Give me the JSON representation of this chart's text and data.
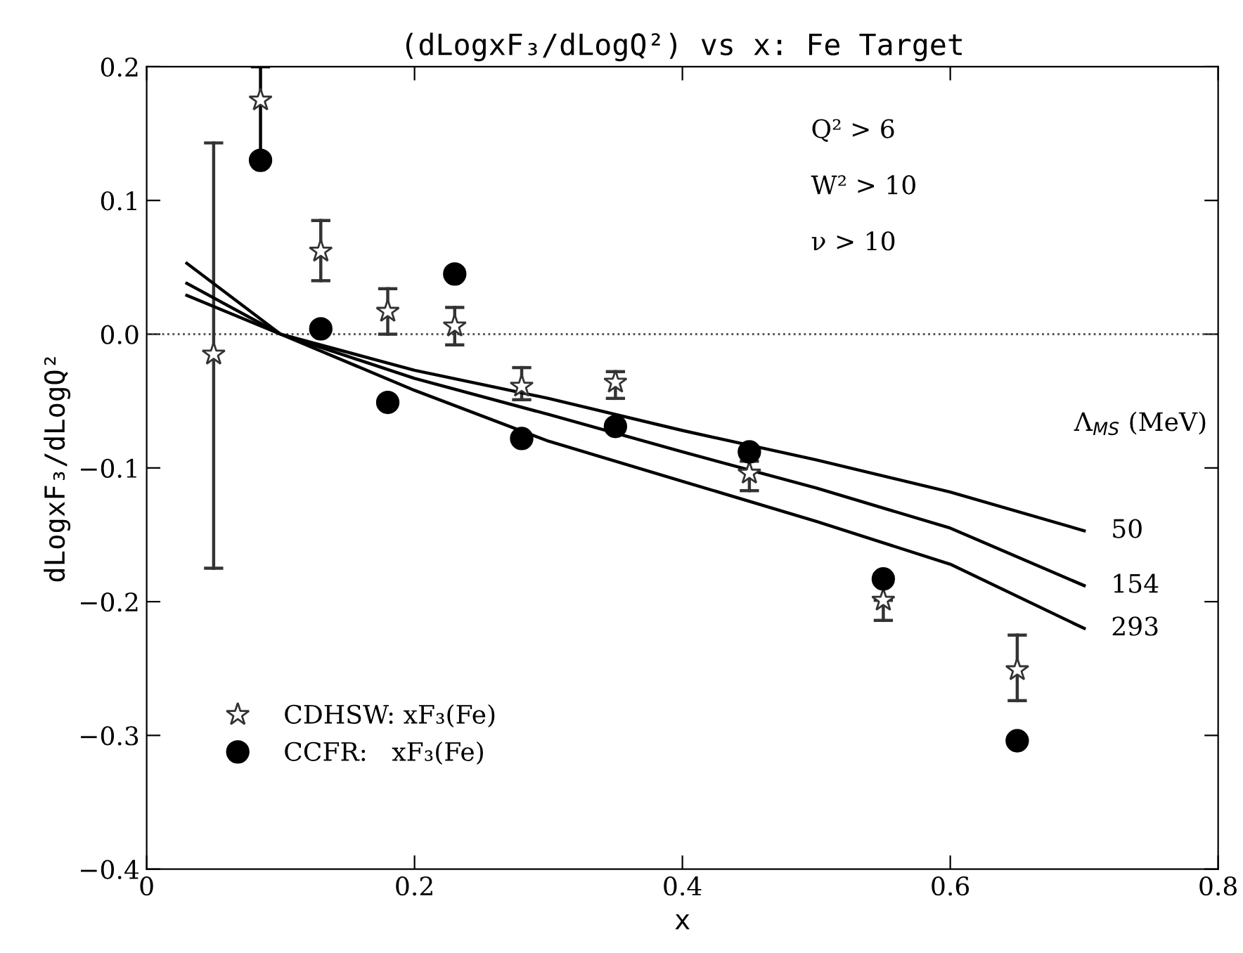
{
  "chart_data": {
    "type": "scatter",
    "title": "(dLogxF₃/dLogQ²) vs x: Fe Target",
    "xlabel": "x",
    "ylabel": "dLogxF₃/dLogQ²",
    "legend": "bottom left",
    "grid": false,
    "xlim": [
      0,
      0.8
    ],
    "xticks": [
      {
        "value": 0,
        "label": "0"
      },
      0.2,
      0.4,
      0.6,
      0.8
    ],
    "ylim": [
      -0.4,
      0.2
    ],
    "yticks": [
      {
        "value": -0.4,
        "label": "−0.4"
      },
      {
        "value": -0.3,
        "label": "−0.3"
      },
      {
        "value": -0.2,
        "label": "−0.2"
      },
      {
        "value": -0.1,
        "label": "−0.1"
      },
      {
        "value": 0.0,
        "label": "0.0"
      },
      0.1,
      0.2
    ],
    "ref_lines": [
      {
        "axis": "y",
        "value": 0,
        "label": null,
        "color": "#555555",
        "line_style": "dotted"
      }
    ],
    "annotations": [
      "Q² > 6",
      "W² > 10",
      "ν > 10",
      "Λ$_{MS}$ (MeV)"
    ],
    "series": [
      {
        "name": "CDHSW: xF₃(Fe)",
        "marker": "star",
        "color": "#333333",
        "x": [
          0.05,
          0.085,
          0.13,
          0.18,
          0.23,
          0.28,
          0.35,
          0.45,
          0.55,
          0.65
        ],
        "values": [
          -0.015,
          0.175,
          0.062,
          0.017,
          0.006,
          -0.039,
          -0.036,
          -0.104,
          -0.199,
          -0.251
        ],
        "errors": [
          [
            -0.175,
            0.143
          ],
          null,
          [
            0.04,
            0.085
          ],
          [
            0.0,
            0.034
          ],
          [
            -0.008,
            0.02
          ],
          [
            -0.049,
            -0.025
          ],
          [
            -0.048,
            -0.028
          ],
          [
            -0.117,
            -0.095
          ],
          [
            -0.214,
            -0.199
          ],
          [
            -0.274,
            -0.225
          ]
        ]
      },
      {
        "name": "CCFR:   xF₃(Fe)",
        "marker": "circle",
        "color": "#000000",
        "x": [
          0.085,
          0.13,
          0.18,
          0.23,
          0.28,
          0.35,
          0.45,
          0.55,
          0.65
        ],
        "values": [
          0.13,
          0.004,
          -0.051,
          0.045,
          -0.078,
          -0.069,
          -0.088,
          -0.183,
          -0.304
        ],
        "errors": [
          [
            0.13,
            0.2
          ],
          null,
          null,
          null,
          null,
          null,
          null,
          null,
          null
        ]
      },
      {
        "name": "50",
        "type": "line",
        "color": "#000000",
        "line_style": "solid",
        "x": [
          0.03,
          0.1,
          0.2,
          0.3,
          0.4,
          0.5,
          0.6,
          0.7
        ],
        "values": [
          0.029,
          0.0,
          -0.027,
          -0.048,
          -0.072,
          -0.094,
          -0.118,
          -0.147
        ]
      },
      {
        "name": "154",
        "type": "line",
        "color": "#000000",
        "line_style": "solid",
        "x": [
          0.03,
          0.1,
          0.2,
          0.3,
          0.4,
          0.5,
          0.6,
          0.7
        ],
        "values": [
          0.038,
          0.0,
          -0.033,
          -0.06,
          -0.088,
          -0.115,
          -0.145,
          -0.188
        ]
      },
      {
        "name": "293",
        "type": "line",
        "color": "#000000",
        "line_style": "solid",
        "x": [
          0.03,
          0.1,
          0.2,
          0.3,
          0.4,
          0.5,
          0.6,
          0.7
        ],
        "values": [
          0.053,
          0.0,
          -0.042,
          -0.08,
          -0.11,
          -0.14,
          -0.172,
          -0.22
        ]
      }
    ]
  }
}
